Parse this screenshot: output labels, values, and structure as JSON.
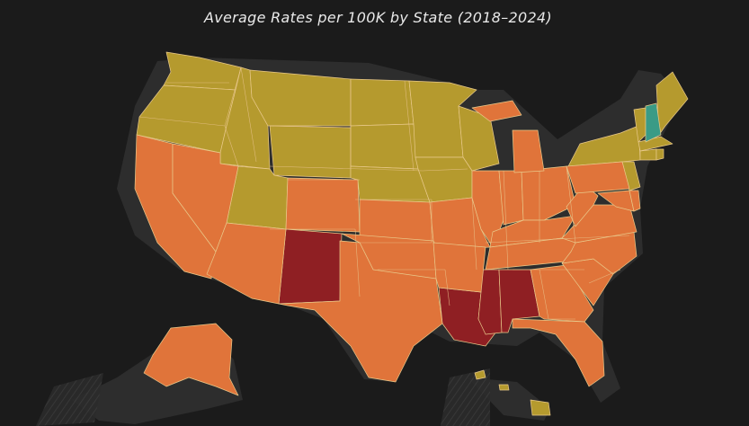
{
  "subtitle": "Average Rates per 100K by State (2018–2024)",
  "colors": {
    "background": "#1b1b1b",
    "low": "#b59a2e",
    "mid": "#e0743a",
    "high": "#8f1f23",
    "lowest": "#3a9b86"
  },
  "states": [
    {
      "name": "Washington",
      "bin": "low"
    },
    {
      "name": "Oregon",
      "bin": "low"
    },
    {
      "name": "Idaho",
      "bin": "low"
    },
    {
      "name": "Montana",
      "bin": "low"
    },
    {
      "name": "Wyoming",
      "bin": "low"
    },
    {
      "name": "North Dakota",
      "bin": "low"
    },
    {
      "name": "South Dakota",
      "bin": "low"
    },
    {
      "name": "Nebraska",
      "bin": "low"
    },
    {
      "name": "Minnesota",
      "bin": "low"
    },
    {
      "name": "Wisconsin",
      "bin": "low"
    },
    {
      "name": "Iowa",
      "bin": "low"
    },
    {
      "name": "Utah",
      "bin": "low"
    },
    {
      "name": "New York",
      "bin": "low"
    },
    {
      "name": "Vermont",
      "bin": "low"
    },
    {
      "name": "Maine",
      "bin": "low"
    },
    {
      "name": "Massachusetts",
      "bin": "low"
    },
    {
      "name": "Connecticut",
      "bin": "low"
    },
    {
      "name": "Rhode Island",
      "bin": "low"
    },
    {
      "name": "New Jersey",
      "bin": "low"
    },
    {
      "name": "Hawaii",
      "bin": "low"
    },
    {
      "name": "New Hampshire",
      "bin": "lowest"
    },
    {
      "name": "New Mexico",
      "bin": "high"
    },
    {
      "name": "Louisiana",
      "bin": "high"
    },
    {
      "name": "Mississippi",
      "bin": "high"
    },
    {
      "name": "Alabama",
      "bin": "high"
    },
    {
      "name": "California",
      "bin": "mid"
    },
    {
      "name": "Nevada",
      "bin": "mid"
    },
    {
      "name": "Arizona",
      "bin": "mid"
    },
    {
      "name": "Colorado",
      "bin": "mid"
    },
    {
      "name": "Kansas",
      "bin": "mid"
    },
    {
      "name": "Oklahoma",
      "bin": "mid"
    },
    {
      "name": "Texas",
      "bin": "mid"
    },
    {
      "name": "Missouri",
      "bin": "mid"
    },
    {
      "name": "Arkansas",
      "bin": "mid"
    },
    {
      "name": "Illinois",
      "bin": "mid"
    },
    {
      "name": "Indiana",
      "bin": "mid"
    },
    {
      "name": "Ohio",
      "bin": "mid"
    },
    {
      "name": "Michigan",
      "bin": "mid"
    },
    {
      "name": "Kentucky",
      "bin": "mid"
    },
    {
      "name": "Tennessee",
      "bin": "mid"
    },
    {
      "name": "Georgia",
      "bin": "mid"
    },
    {
      "name": "Florida",
      "bin": "mid"
    },
    {
      "name": "South Carolina",
      "bin": "mid"
    },
    {
      "name": "North Carolina",
      "bin": "mid"
    },
    {
      "name": "Virginia",
      "bin": "mid"
    },
    {
      "name": "West Virginia",
      "bin": "mid"
    },
    {
      "name": "Pennsylvania",
      "bin": "mid"
    },
    {
      "name": "Maryland",
      "bin": "mid"
    },
    {
      "name": "Delaware",
      "bin": "mid"
    },
    {
      "name": "Alaska",
      "bin": "mid"
    }
  ]
}
